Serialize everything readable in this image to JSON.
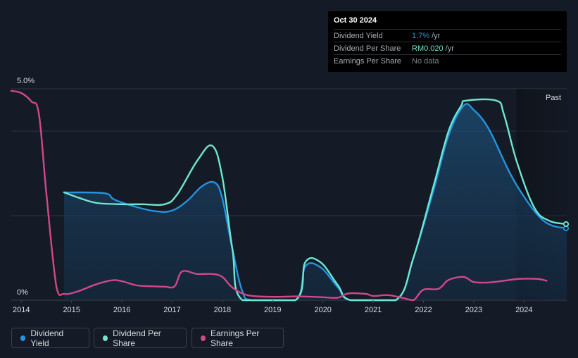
{
  "tooltip": {
    "date": "Oct 30 2024",
    "rows": [
      {
        "label": "Dividend Yield",
        "value": "1.7%",
        "unit": "/yr",
        "color": "#2394df"
      },
      {
        "label": "Dividend Per Share",
        "value": "RM0.020",
        "unit": "/yr",
        "color": "#6ee6d0"
      },
      {
        "label": "Earnings Per Share",
        "value": "No data",
        "unit": "",
        "color": "#7a808a"
      }
    ]
  },
  "legend": [
    {
      "label": "Dividend Yield",
      "color": "#2394df"
    },
    {
      "label": "Dividend Per Share",
      "color": "#6ee6d0"
    },
    {
      "label": "Earnings Per Share",
      "color": "#d1478b"
    }
  ],
  "chart_data": {
    "type": "line",
    "x_range": [
      2013.8,
      2024.85
    ],
    "y_range_pct": [
      0,
      5.0
    ],
    "y_tick_labels": [
      "5.0%",
      "0%"
    ],
    "x_ticks": [
      2014,
      2015,
      2016,
      2017,
      2018,
      2019,
      2020,
      2021,
      2022,
      2023,
      2024
    ],
    "past_label": "Past",
    "past_start": 2023.85,
    "series": [
      {
        "name": "Dividend Yield",
        "color": "#2394df",
        "fill": true,
        "points": [
          [
            2014.85,
            2.55
          ],
          [
            2015.65,
            2.53
          ],
          [
            2015.85,
            2.38
          ],
          [
            2016.3,
            2.2
          ],
          [
            2016.7,
            2.1
          ],
          [
            2017.0,
            2.12
          ],
          [
            2017.3,
            2.35
          ],
          [
            2017.6,
            2.7
          ],
          [
            2017.85,
            2.78
          ],
          [
            2018.0,
            2.4
          ],
          [
            2018.2,
            1.2
          ],
          [
            2018.4,
            0.2
          ],
          [
            2018.6,
            0
          ],
          [
            2019.45,
            0
          ],
          [
            2019.65,
            0.8
          ],
          [
            2019.95,
            0.78
          ],
          [
            2020.3,
            0.3
          ],
          [
            2020.55,
            0
          ],
          [
            2021.45,
            0
          ],
          [
            2021.8,
            1.0
          ],
          [
            2022.2,
            2.6
          ],
          [
            2022.5,
            3.9
          ],
          [
            2022.8,
            4.6
          ],
          [
            2023.0,
            4.5
          ],
          [
            2023.3,
            4.05
          ],
          [
            2023.7,
            3.05
          ],
          [
            2024.0,
            2.45
          ],
          [
            2024.3,
            1.98
          ],
          [
            2024.55,
            1.77
          ],
          [
            2024.85,
            1.7
          ]
        ]
      },
      {
        "name": "Dividend Per Share",
        "color": "#6ee6d0",
        "fill": false,
        "points": [
          [
            2014.85,
            2.55
          ],
          [
            2015.15,
            2.42
          ],
          [
            2015.5,
            2.3
          ],
          [
            2016.0,
            2.27
          ],
          [
            2016.4,
            2.27
          ],
          [
            2016.85,
            2.27
          ],
          [
            2017.1,
            2.5
          ],
          [
            2017.5,
            3.3
          ],
          [
            2017.8,
            3.65
          ],
          [
            2018.0,
            2.9
          ],
          [
            2018.2,
            1.2
          ],
          [
            2018.4,
            0
          ],
          [
            2019.45,
            0
          ],
          [
            2019.65,
            0.9
          ],
          [
            2019.95,
            0.9
          ],
          [
            2020.3,
            0.35
          ],
          [
            2020.55,
            0
          ],
          [
            2021.45,
            0
          ],
          [
            2021.8,
            1.0
          ],
          [
            2022.2,
            2.7
          ],
          [
            2022.5,
            4.0
          ],
          [
            2022.75,
            4.6
          ],
          [
            2022.85,
            4.72
          ],
          [
            2023.45,
            4.72
          ],
          [
            2023.6,
            4.4
          ],
          [
            2023.85,
            3.3
          ],
          [
            2024.2,
            2.2
          ],
          [
            2024.5,
            1.88
          ],
          [
            2024.85,
            1.8
          ]
        ]
      },
      {
        "name": "Earnings Per Share",
        "color": "#d1478b",
        "fill": false,
        "points": [
          [
            2013.8,
            4.95
          ],
          [
            2014.0,
            4.9
          ],
          [
            2014.2,
            4.7
          ],
          [
            2014.35,
            4.4
          ],
          [
            2014.5,
            2.5
          ],
          [
            2014.7,
            0.3
          ],
          [
            2014.85,
            0.15
          ],
          [
            2015.1,
            0.2
          ],
          [
            2015.5,
            0.38
          ],
          [
            2015.8,
            0.47
          ],
          [
            2016.0,
            0.45
          ],
          [
            2016.3,
            0.35
          ],
          [
            2016.6,
            0.33
          ],
          [
            2016.85,
            0.32
          ],
          [
            2017.05,
            0.33
          ],
          [
            2017.2,
            0.68
          ],
          [
            2017.5,
            0.62
          ],
          [
            2017.8,
            0.62
          ],
          [
            2018.0,
            0.55
          ],
          [
            2018.2,
            0.3
          ],
          [
            2018.5,
            0.12
          ],
          [
            2019.0,
            0.08
          ],
          [
            2019.5,
            0.09
          ],
          [
            2020.0,
            0.07
          ],
          [
            2020.3,
            0.06
          ],
          [
            2020.5,
            0.16
          ],
          [
            2020.85,
            0.15
          ],
          [
            2021.0,
            0.1
          ],
          [
            2021.3,
            0.12
          ],
          [
            2021.6,
            0.05
          ],
          [
            2021.8,
            0.0
          ],
          [
            2022.0,
            0.25
          ],
          [
            2022.3,
            0.27
          ],
          [
            2022.5,
            0.48
          ],
          [
            2022.8,
            0.55
          ],
          [
            2023.0,
            0.43
          ],
          [
            2023.3,
            0.42
          ],
          [
            2023.6,
            0.46
          ],
          [
            2023.85,
            0.5
          ],
          [
            2024.05,
            0.51
          ],
          [
            2024.3,
            0.5
          ],
          [
            2024.45,
            0.46
          ]
        ]
      }
    ]
  }
}
